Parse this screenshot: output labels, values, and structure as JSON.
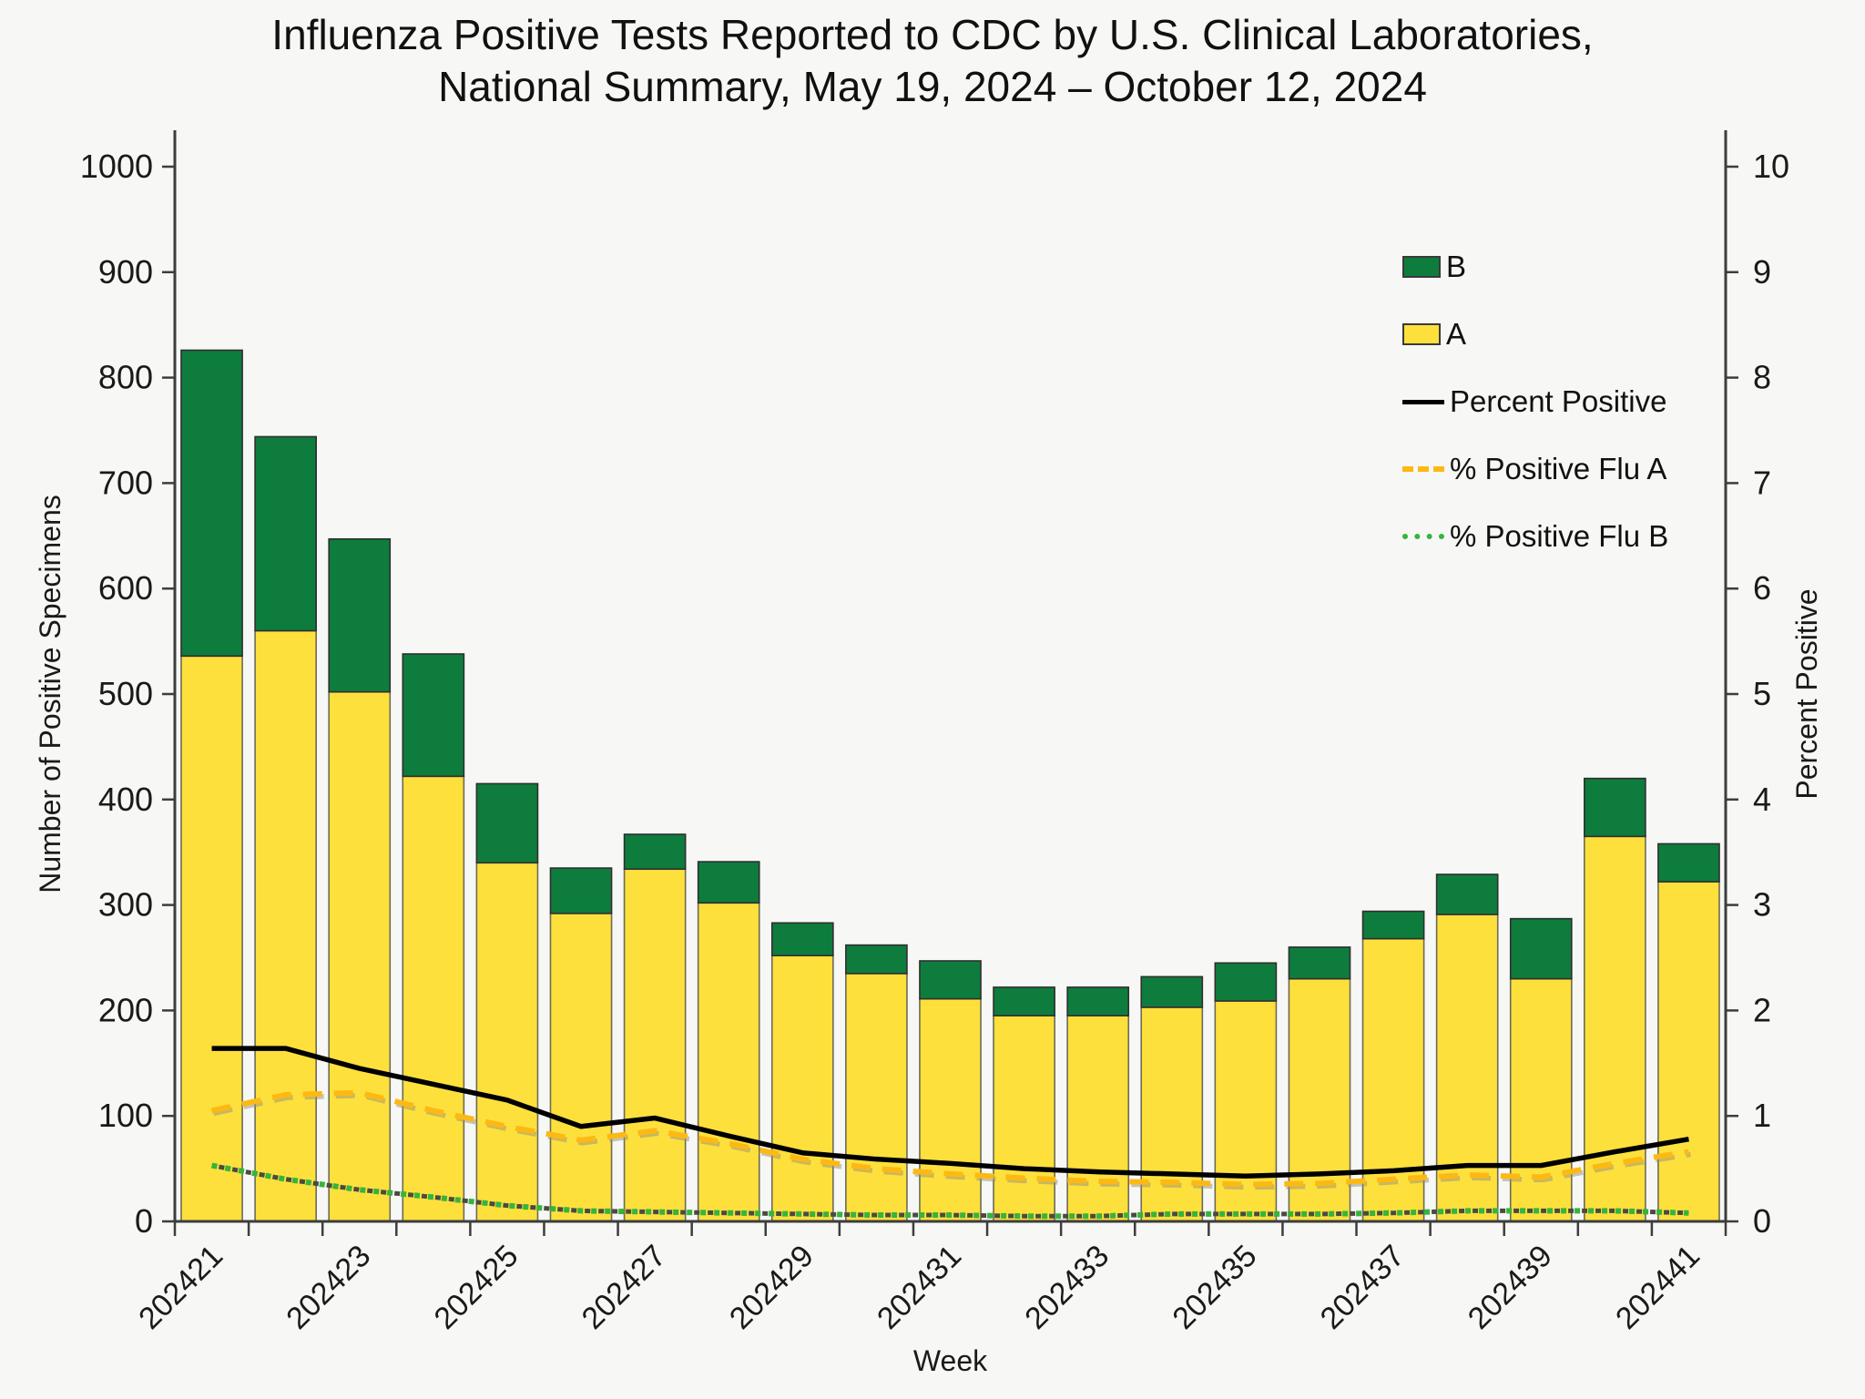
{
  "title": {
    "line1": "Influenza Positive Tests Reported to CDC by U.S. Clinical Laboratories,",
    "line2": "National Summary, May 19, 2024 – October 12, 2024"
  },
  "axes": {
    "left_title": "Number of Positive Specimens",
    "right_title": "Percent Positive",
    "x_title": "Week"
  },
  "legend": {
    "items": [
      {
        "key": "b",
        "label": "B",
        "swatch": "rect",
        "color": "#0e7c3d"
      },
      {
        "key": "a",
        "label": "A",
        "swatch": "rect",
        "color": "#fee03c"
      },
      {
        "key": "pct",
        "label": "Percent Positive",
        "swatch": "solid-line",
        "color": "#000000"
      },
      {
        "key": "pct_a",
        "label": "% Positive Flu A",
        "swatch": "dashed-line",
        "color": "#fdb913"
      },
      {
        "key": "pct_b",
        "label": "% Positive Flu B",
        "swatch": "dotted-line",
        "color": "#35b53a"
      }
    ]
  },
  "chart_data": {
    "type": "bar",
    "subtype": "stacked-bars-with-lines",
    "categories": [
      "202421",
      "202422",
      "202423",
      "202424",
      "202425",
      "202426",
      "202427",
      "202428",
      "202429",
      "202430",
      "202431",
      "202432",
      "202433",
      "202434",
      "202435",
      "202436",
      "202437",
      "202438",
      "202439",
      "202440",
      "202441"
    ],
    "x_tick_labels": [
      "202421",
      "202423",
      "202425",
      "202427",
      "202429",
      "202431",
      "202433",
      "202435",
      "202437",
      "202439",
      "202441"
    ],
    "series": [
      {
        "name": "A",
        "axis": "left",
        "values": [
          536,
          560,
          502,
          422,
          340,
          292,
          334,
          302,
          252,
          235,
          211,
          195,
          195,
          203,
          209,
          230,
          268,
          291,
          230,
          365,
          322
        ],
        "color": "#fee03c"
      },
      {
        "name": "B",
        "axis": "left",
        "values": [
          290,
          184,
          145,
          116,
          75,
          43,
          33,
          39,
          31,
          27,
          36,
          27,
          27,
          29,
          36,
          30,
          26,
          38,
          57,
          55,
          36
        ],
        "color": "#0e7c3d"
      },
      {
        "name": "Percent Positive",
        "axis": "right",
        "values": [
          1.64,
          1.64,
          1.45,
          1.3,
          1.15,
          0.9,
          0.98,
          0.81,
          0.65,
          0.59,
          0.55,
          0.5,
          0.47,
          0.45,
          0.43,
          0.45,
          0.48,
          0.53,
          0.53,
          0.66,
          0.78
        ],
        "color": "#000000",
        "style": "solid"
      },
      {
        "name": "% Positive Flu A",
        "axis": "right",
        "values": [
          1.05,
          1.2,
          1.22,
          1.05,
          0.9,
          0.77,
          0.86,
          0.74,
          0.59,
          0.5,
          0.45,
          0.41,
          0.38,
          0.37,
          0.35,
          0.36,
          0.4,
          0.44,
          0.42,
          0.55,
          0.66
        ],
        "color": "#fdb913",
        "style": "dashed"
      },
      {
        "name": "% Positive Flu B",
        "axis": "right",
        "values": [
          0.53,
          0.4,
          0.3,
          0.23,
          0.15,
          0.1,
          0.09,
          0.08,
          0.07,
          0.06,
          0.06,
          0.05,
          0.05,
          0.07,
          0.07,
          0.07,
          0.08,
          0.1,
          0.1,
          0.1,
          0.08
        ],
        "color": "#35b53a",
        "style": "dotted"
      }
    ],
    "left_ticks": [
      0,
      100,
      200,
      300,
      400,
      500,
      600,
      700,
      800,
      900,
      1000
    ],
    "right_ticks": [
      0,
      1,
      2,
      3,
      4,
      5,
      6,
      7,
      8,
      9,
      10
    ],
    "ylim_left": [
      0,
      1000
    ],
    "ylim_right": [
      0,
      10
    ],
    "title": "Influenza Positive Tests Reported to CDC by U.S. Clinical Laboratories, National Summary, May 19, 2024 – October 12, 2024",
    "xlabel": "Week",
    "ylabel_left": "Number of Positive Specimens",
    "ylabel_right": "Percent Positive",
    "grid": false,
    "legend_position": "upper-right-inside"
  }
}
